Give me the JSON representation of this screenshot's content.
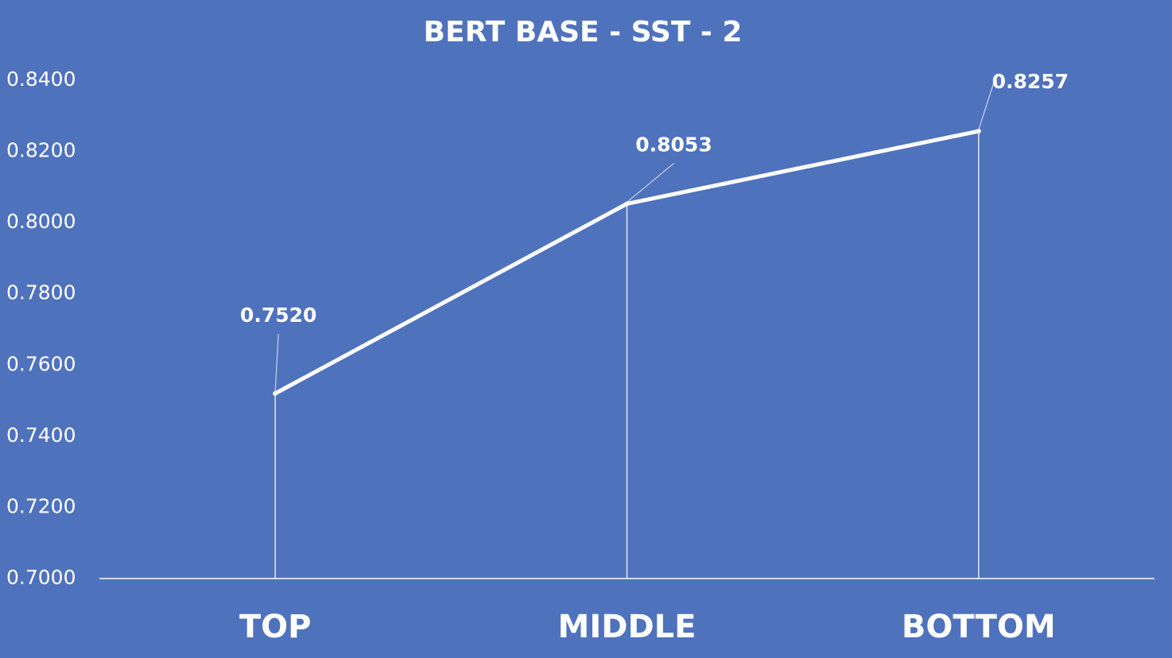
{
  "chart_data": {
    "type": "line",
    "title": "BERT BASE - SST - 2",
    "categories": [
      "TOP",
      "MIDDLE",
      "BOTTOM"
    ],
    "series": [
      {
        "color": "#ffffff",
        "values": [
          0.752,
          0.8053,
          0.8257
        ],
        "value_labels": [
          "0.7520",
          "0.8053",
          "0.8257"
        ]
      }
    ],
    "ylim": [
      0.7,
      0.84
    ],
    "yticks": [
      {
        "value": 0.7,
        "label": "0.7000"
      },
      {
        "value": 0.72,
        "label": "0.7200"
      },
      {
        "value": 0.74,
        "label": "0.7400"
      },
      {
        "value": 0.76,
        "label": "0.7600"
      },
      {
        "value": 0.78,
        "label": "0.7800"
      },
      {
        "value": 0.8,
        "label": "0.8000"
      },
      {
        "value": 0.82,
        "label": "0.8200"
      },
      {
        "value": 0.84,
        "label": "0.8400"
      }
    ],
    "grid": false
  }
}
